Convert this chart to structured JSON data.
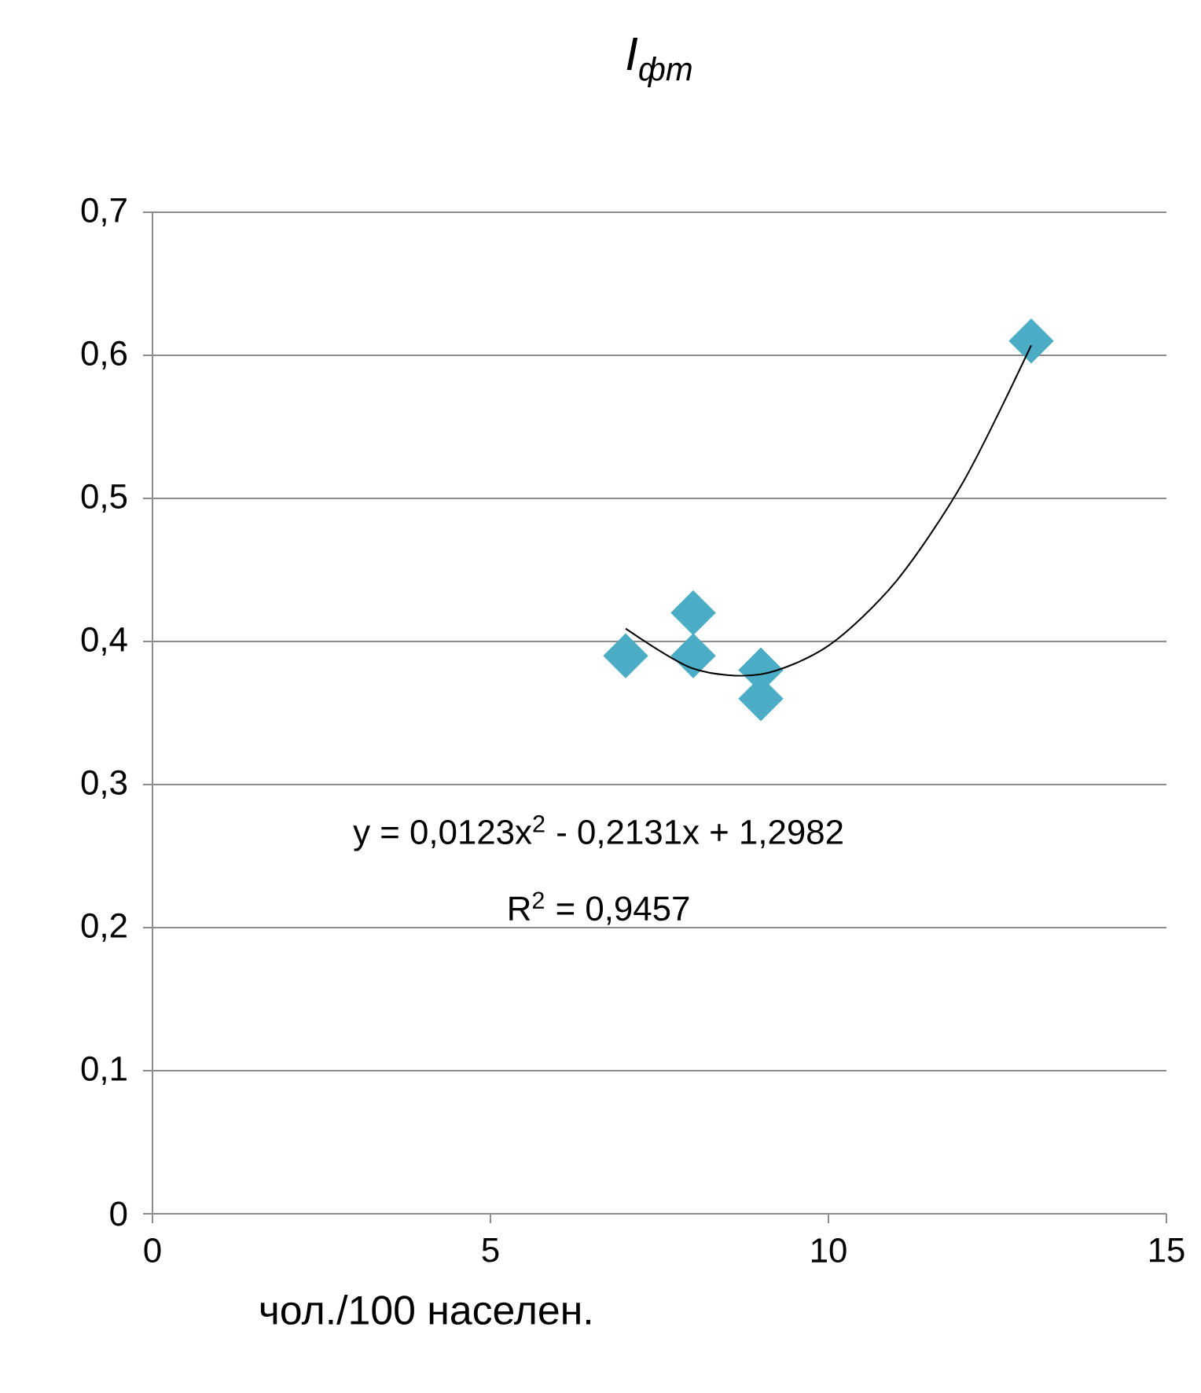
{
  "chart_data": {
    "type": "scatter",
    "title": "I$_{фт}$",
    "xlabel": "чол./100 населен.",
    "xlim": [
      0,
      15
    ],
    "xticks": [
      0,
      5,
      10,
      15
    ],
    "ylim": [
      0,
      0.7
    ],
    "yticks": [
      0,
      {
        "value": 0.1,
        "label": "0,1"
      },
      {
        "value": 0.2,
        "label": "0,2"
      },
      {
        "value": 0.3,
        "label": "0,3"
      },
      {
        "value": 0.4,
        "label": "0,4"
      },
      {
        "value": 0.5,
        "label": "0,5"
      },
      {
        "value": 0.6,
        "label": "0,6"
      },
      {
        "value": 0.7,
        "label": "0,7"
      }
    ],
    "grid": "y",
    "marker": "diamond",
    "annotations": [
      "y = 0,0123x$^{2}$ - 0,2131x + 1,2982",
      "R$^{2}$ = 0,9457"
    ],
    "series": [
      {
        "type": "scatter",
        "color": "#4bacc6",
        "x": [
          7,
          8,
          8,
          9,
          9,
          13
        ],
        "values": [
          0.39,
          0.42,
          0.39,
          0.38,
          0.36,
          0.61
        ]
      },
      {
        "type": "line",
        "color": "#000000",
        "marker": "none",
        "x": [
          7,
          8,
          9,
          10,
          11,
          12,
          13
        ],
        "values": [
          0.409,
          0.381,
          0.377,
          0.397,
          0.442,
          0.512,
          0.607
        ]
      }
    ]
  }
}
